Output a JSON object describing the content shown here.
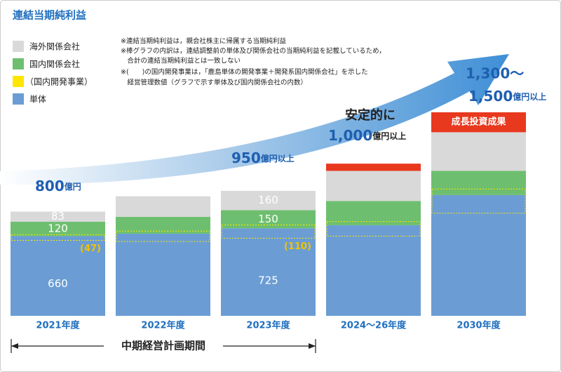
{
  "chart_data": {
    "type": "bar",
    "title": "連結当期純利益",
    "categories": [
      "2021年度",
      "2022年度",
      "2023年度",
      "2024〜26年度",
      "2030年度"
    ],
    "series": [
      {
        "name": "単体",
        "color": "#6b9dd4",
        "values": [
          660,
          680,
          725,
          750,
          1000
        ],
        "value_labels": [
          "660",
          null,
          "725",
          null,
          null
        ]
      },
      {
        "name": "国内関係会社",
        "color": "#6dbf6f",
        "values": [
          120,
          140,
          150,
          200,
          200
        ],
        "value_labels": [
          "120",
          null,
          "150",
          null,
          null
        ]
      },
      {
        "name": "海外関係会社",
        "color": "#d9d9d9",
        "values": [
          83,
          170,
          160,
          250,
          320
        ],
        "value_labels": [
          "83",
          null,
          "160",
          null,
          null
        ]
      },
      {
        "name": "成長投資成果",
        "color": "#e8391f",
        "values": [
          null,
          null,
          null,
          60,
          165
        ]
      }
    ],
    "overlay": {
      "name": "（国内開発事業）",
      "color": "#ffe600",
      "values": [
        47,
        85,
        110,
        120,
        200
      ],
      "value_labels": [
        "(47)",
        null,
        "(110)",
        null,
        null
      ]
    },
    "targets": [
      {
        "amount": "800",
        "unit": "億円"
      },
      {
        "amount": "950",
        "unit": "億円以上"
      },
      {
        "prefix": "安定的に",
        "amount": "1,000",
        "unit": "億円以上"
      },
      {
        "prefix": "1,300〜",
        "amount": "1,500",
        "unit": "億円以上"
      }
    ],
    "notes": [
      "※連結当期純利益は，親会社株主に帰属する当期純利益",
      "※棒グラフの内訳は，連結調整前の単体及び関係会社の当期純利益を記載しているため，",
      "　合計の連結当期純利益とは一致しない",
      "※(　　)の国内開発事業は，「鹿島単体の開発事業＋開発系国内関係会社」を示した",
      "　経営管理数値（グラフで示す単体及び国内関係会社の内数）"
    ],
    "period_label": "中期経営計画期間"
  }
}
